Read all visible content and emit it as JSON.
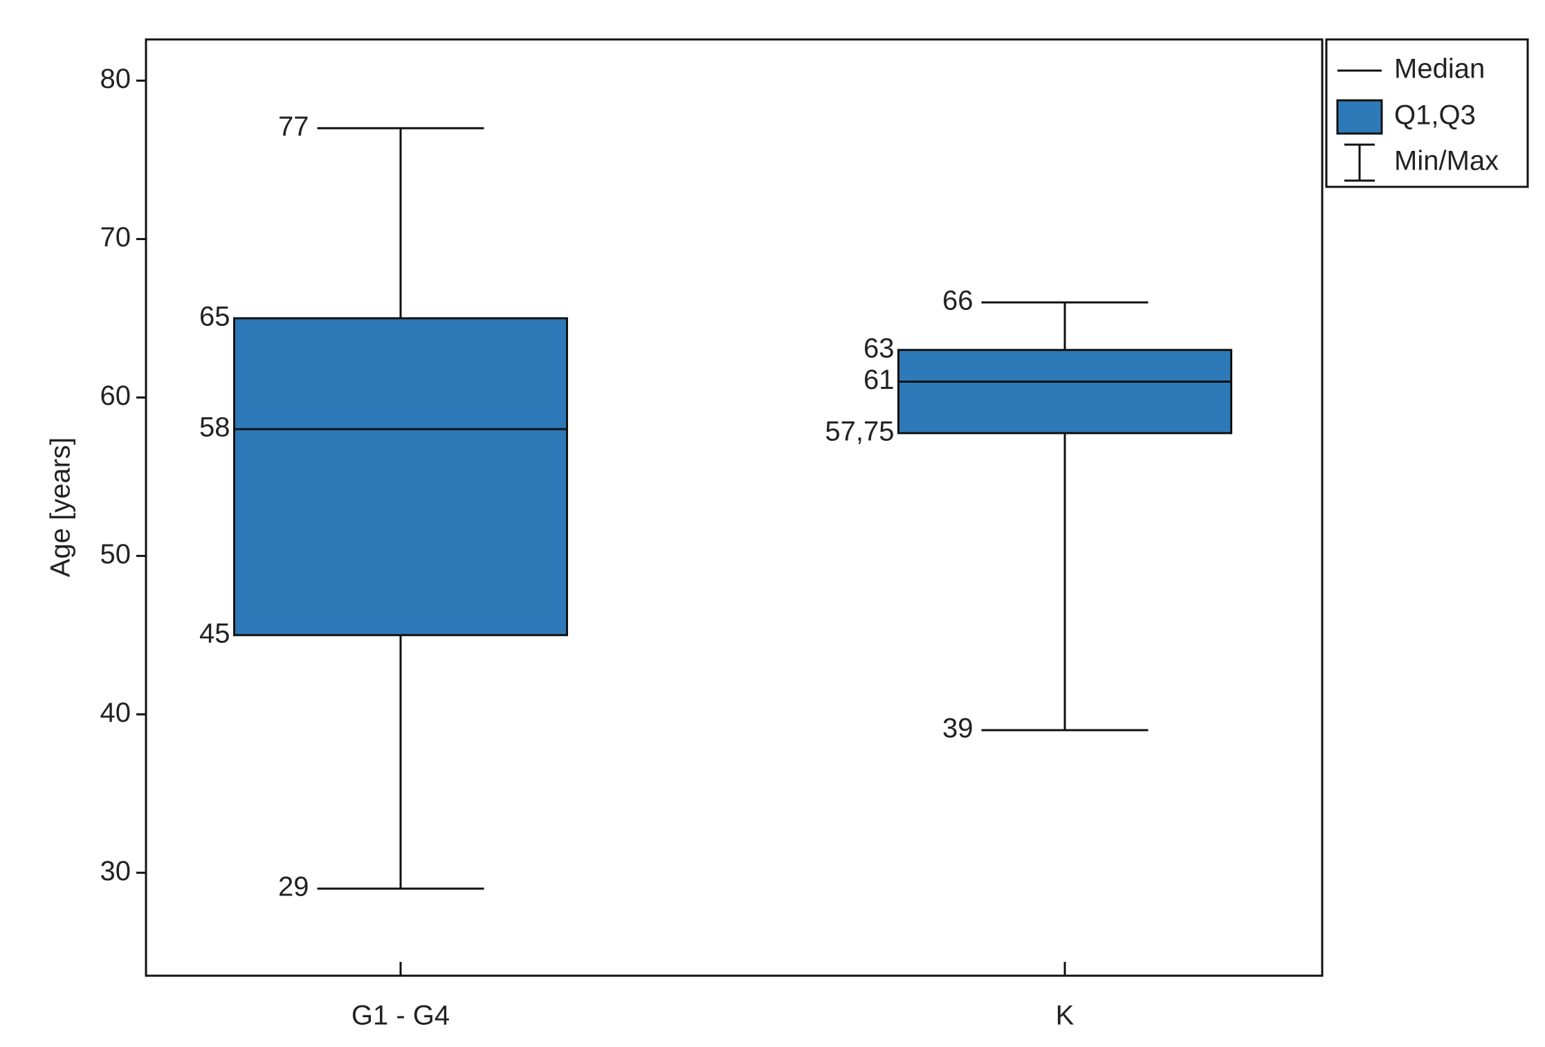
{
  "chart_data": {
    "type": "box",
    "y_label": "Age [years]",
    "categories": [
      "G1 - G4",
      "K"
    ],
    "min": [
      29,
      39
    ],
    "q1": [
      45,
      57.75
    ],
    "q1_labels": [
      "45",
      "57,75"
    ],
    "median": [
      58,
      61
    ],
    "q3": [
      65,
      63
    ],
    "max": [
      77,
      66
    ],
    "color": "#2e7ab8",
    "ylim": [
      23.5,
      82.6
    ],
    "yticks": [
      30,
      40,
      50,
      60,
      70,
      80
    ],
    "grid": false,
    "legend": {
      "position": "top-right",
      "entries": [
        "Median",
        "Q1,Q3",
        "Min/Max"
      ]
    }
  }
}
